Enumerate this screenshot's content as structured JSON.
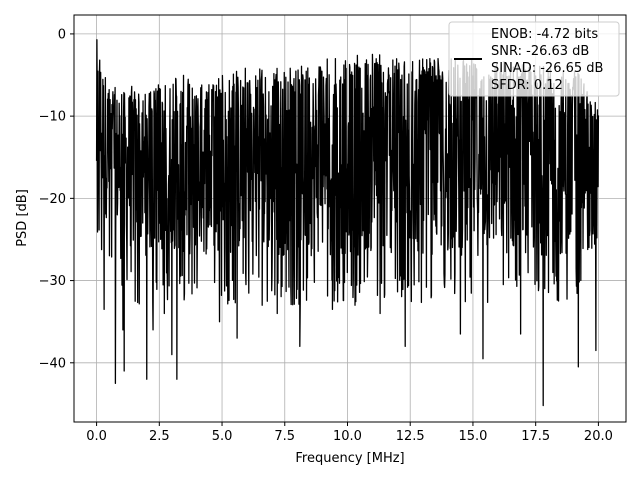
{
  "chart_data": {
    "type": "line",
    "xlabel": "Frequency [MHz]",
    "ylabel": "PSD [dB]",
    "xlim": [
      -0.9,
      21.1
    ],
    "ylim": [
      -47.2,
      2.3
    ],
    "xticks": [
      0.0,
      2.5,
      5.0,
      7.5,
      10.0,
      12.5,
      15.0,
      17.5,
      20.0
    ],
    "xtick_labels": [
      "0.0",
      "2.5",
      "5.0",
      "7.5",
      "10.0",
      "12.5",
      "15.0",
      "17.5",
      "20.0"
    ],
    "yticks": [
      0,
      -10,
      -20,
      -30,
      -40
    ],
    "ytick_labels": [
      "0",
      "−10",
      "−20",
      "−30",
      "−40"
    ],
    "grid": true,
    "legend_position": "top-right",
    "line_color": "#000000",
    "series": [
      {
        "legend_lines": [
          "ENOB: -4.72 bits",
          "SNR: -26.63 dB",
          "SINAD: -26.65 dB",
          "SFDR: 0.12"
        ],
        "x_range": [
          0.0,
          20.0
        ],
        "envelope_x": [
          0.0,
          0.1,
          0.5,
          1.0,
          1.5,
          2.0,
          2.5,
          3.0,
          3.5,
          4.0,
          5.0,
          6.0,
          7.0,
          8.0,
          9.0,
          10.0,
          11.0,
          12.0,
          13.0,
          14.0,
          15.0,
          16.0,
          17.0,
          18.0,
          19.0,
          20.0
        ],
        "envelope_max_y": [
          -0.5,
          -1.5,
          -6,
          -7,
          -6,
          -7,
          -6,
          -5,
          -5,
          -6,
          -5,
          -4,
          -4,
          -4,
          -3,
          -3,
          -2,
          -3,
          -3,
          -3,
          -3,
          -3,
          -3,
          -4,
          -4,
          -8
        ],
        "envelope_min_y": [
          -28,
          -27,
          -29,
          -31,
          -33,
          -33,
          -33,
          -32,
          -33,
          -33,
          -33,
          -33,
          -33,
          -33,
          -33,
          -33,
          -33,
          -33,
          -33,
          -33,
          -33,
          -33,
          -33,
          -33,
          -33,
          -25
        ],
        "dips": [
          {
            "x": 0.3,
            "y": -33.5
          },
          {
            "x": 0.75,
            "y": -42.5
          },
          {
            "x": 1.05,
            "y": -36.0
          },
          {
            "x": 1.1,
            "y": -41.0
          },
          {
            "x": 2.0,
            "y": -42.0
          },
          {
            "x": 2.25,
            "y": -36.0
          },
          {
            "x": 2.7,
            "y": -34.0
          },
          {
            "x": 3.0,
            "y": -39.0
          },
          {
            "x": 3.2,
            "y": -42.0
          },
          {
            "x": 4.9,
            "y": -35.0
          },
          {
            "x": 5.6,
            "y": -37.0
          },
          {
            "x": 6.6,
            "y": -33.0
          },
          {
            "x": 7.2,
            "y": -34.0
          },
          {
            "x": 8.1,
            "y": -38.0
          },
          {
            "x": 9.4,
            "y": -33.5
          },
          {
            "x": 10.3,
            "y": -33.0
          },
          {
            "x": 11.3,
            "y": -34.0
          },
          {
            "x": 12.3,
            "y": -38.0
          },
          {
            "x": 14.5,
            "y": -36.5
          },
          {
            "x": 15.4,
            "y": -39.5
          },
          {
            "x": 16.9,
            "y": -36.5
          },
          {
            "x": 17.8,
            "y": -45.2
          },
          {
            "x": 19.2,
            "y": -40.5
          },
          {
            "x": 19.9,
            "y": -38.5
          }
        ]
      }
    ]
  }
}
